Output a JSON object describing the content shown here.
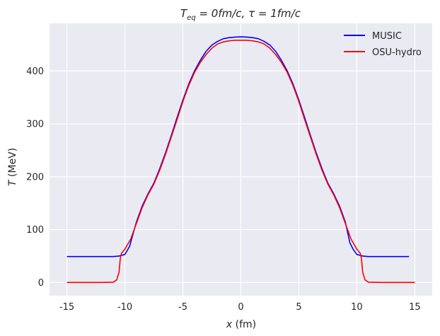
{
  "chart_data": {
    "type": "line",
    "title_main": "T",
    "title_sub": "eq",
    "title_rest": " = 0fm/c, τ = 1fm/c",
    "xlabel_var": "x",
    "xlabel_unit": " (fm)",
    "ylabel_var": "T",
    "ylabel_unit": " (MeV)",
    "xlim": [
      -16.5,
      16.5
    ],
    "ylim": [
      -25,
      490
    ],
    "xticks": [
      -15,
      -10,
      -5,
      0,
      5,
      10,
      15
    ],
    "yticks": [
      0,
      100,
      200,
      300,
      400
    ],
    "grid": true,
    "legend_position": "top-right",
    "series": [
      {
        "name": "MUSIC",
        "color": "#0000ff",
        "points": [
          [
            -15,
            49
          ],
          [
            -12,
            49
          ],
          [
            -11,
            49
          ],
          [
            -10.5,
            50
          ],
          [
            -10,
            53
          ],
          [
            -9.6,
            68
          ],
          [
            -9,
            115
          ],
          [
            -8.5,
            145
          ],
          [
            -8,
            168
          ],
          [
            -7.5,
            188
          ],
          [
            -7,
            215
          ],
          [
            -6.5,
            245
          ],
          [
            -6,
            278
          ],
          [
            -5.5,
            312
          ],
          [
            -5,
            345
          ],
          [
            -4.5,
            375
          ],
          [
            -4,
            400
          ],
          [
            -3.5,
            420
          ],
          [
            -3,
            437
          ],
          [
            -2.5,
            449
          ],
          [
            -2,
            456
          ],
          [
            -1.5,
            461
          ],
          [
            -1,
            463
          ],
          [
            -0.5,
            464
          ],
          [
            0,
            464.5
          ],
          [
            0.5,
            464
          ],
          [
            1,
            463
          ],
          [
            1.5,
            461
          ],
          [
            2,
            456
          ],
          [
            2.5,
            449
          ],
          [
            3,
            437
          ],
          [
            3.5,
            420
          ],
          [
            4,
            400
          ],
          [
            4.5,
            375
          ],
          [
            5,
            345
          ],
          [
            5.5,
            312
          ],
          [
            6,
            278
          ],
          [
            6.5,
            245
          ],
          [
            7,
            215
          ],
          [
            7.5,
            188
          ],
          [
            8,
            168
          ],
          [
            8.5,
            145
          ],
          [
            9,
            115
          ],
          [
            9.4,
            75
          ],
          [
            9.7,
            62
          ],
          [
            10,
            53
          ],
          [
            10.5,
            50
          ],
          [
            11,
            49
          ],
          [
            12,
            49
          ],
          [
            14.5,
            49
          ]
        ]
      },
      {
        "name": "OSU-hydro",
        "color": "#ff0000",
        "points": [
          [
            -15,
            0
          ],
          [
            -12,
            0
          ],
          [
            -11,
            0.5
          ],
          [
            -10.7,
            5
          ],
          [
            -10.5,
            20
          ],
          [
            -10.4,
            45
          ],
          [
            -10.3,
            55
          ],
          [
            -10,
            63
          ],
          [
            -9.5,
            82
          ],
          [
            -9,
            112
          ],
          [
            -8.5,
            142
          ],
          [
            -8,
            166
          ],
          [
            -7.5,
            186
          ],
          [
            -7,
            212
          ],
          [
            -6.5,
            242
          ],
          [
            -6,
            275
          ],
          [
            -5.5,
            308
          ],
          [
            -5,
            342
          ],
          [
            -4.5,
            372
          ],
          [
            -4,
            397
          ],
          [
            -3.5,
            416
          ],
          [
            -3,
            431
          ],
          [
            -2.5,
            443
          ],
          [
            -2,
            451
          ],
          [
            -1.5,
            455
          ],
          [
            -1,
            457
          ],
          [
            -0.5,
            458
          ],
          [
            0,
            458
          ],
          [
            0.5,
            458
          ],
          [
            1,
            457
          ],
          [
            1.5,
            455
          ],
          [
            2,
            451
          ],
          [
            2.5,
            443
          ],
          [
            3,
            431
          ],
          [
            3.5,
            416
          ],
          [
            4,
            397
          ],
          [
            4.5,
            372
          ],
          [
            5,
            342
          ],
          [
            5.5,
            308
          ],
          [
            6,
            275
          ],
          [
            6.5,
            242
          ],
          [
            7,
            212
          ],
          [
            7.5,
            186
          ],
          [
            8,
            166
          ],
          [
            8.5,
            142
          ],
          [
            9,
            112
          ],
          [
            9.5,
            82
          ],
          [
            10,
            63
          ],
          [
            10.3,
            55
          ],
          [
            10.4,
            45
          ],
          [
            10.5,
            20
          ],
          [
            10.7,
            5
          ],
          [
            11,
            0.5
          ],
          [
            12,
            0
          ],
          [
            15,
            0
          ]
        ]
      }
    ]
  }
}
